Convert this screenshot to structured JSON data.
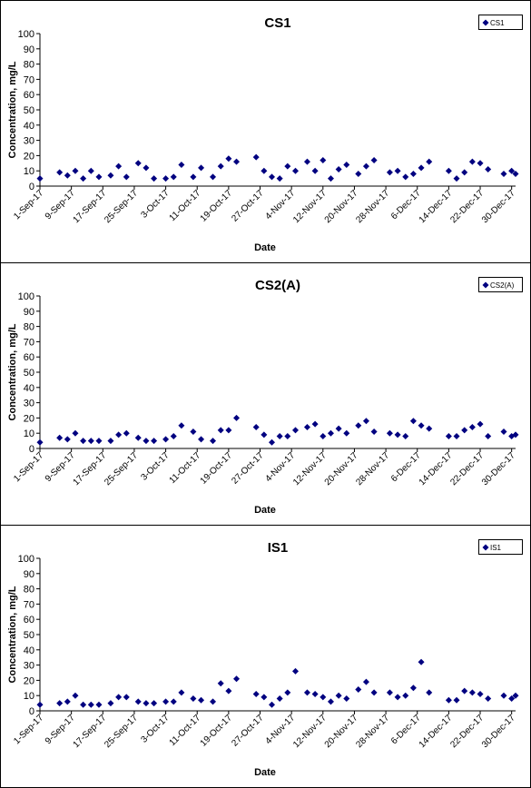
{
  "marker_color": "#000080",
  "x_ticks": [
    "1-Sep-17",
    "9-Sep-17",
    "17-Sep-17",
    "25-Sep-17",
    "3-Oct-17",
    "11-Oct-17",
    "19-Oct-17",
    "27-Oct-17",
    "4-Nov-17",
    "12-Nov-17",
    "20-Nov-17",
    "28-Nov-17",
    "6-Dec-17",
    "14-Dec-17",
    "22-Dec-17",
    "30-Dec-17"
  ],
  "y_ticks": [
    "0",
    "10",
    "20",
    "30",
    "40",
    "50",
    "60",
    "70",
    "80",
    "90",
    "100"
  ],
  "chart_data": [
    {
      "type": "scatter",
      "title": "CS1",
      "xlabel": "Date",
      "ylabel": "Concentration, mg/L",
      "ylim": [
        0,
        100
      ],
      "xlim": [
        "2017-09-01",
        "2017-12-30"
      ],
      "grid": false,
      "legend_position": "top-right",
      "series": [
        {
          "name": "CS1",
          "x": [
            "2017-09-01",
            "2017-09-06",
            "2017-09-08",
            "2017-09-10",
            "2017-09-12",
            "2017-09-14",
            "2017-09-16",
            "2017-09-19",
            "2017-09-21",
            "2017-09-23",
            "2017-09-26",
            "2017-09-28",
            "2017-09-30",
            "2017-10-03",
            "2017-10-05",
            "2017-10-07",
            "2017-10-10",
            "2017-10-12",
            "2017-10-15",
            "2017-10-17",
            "2017-10-19",
            "2017-10-21",
            "2017-10-26",
            "2017-10-28",
            "2017-10-30",
            "2017-11-01",
            "2017-11-03",
            "2017-11-05",
            "2017-11-08",
            "2017-11-10",
            "2017-11-12",
            "2017-11-14",
            "2017-11-16",
            "2017-11-18",
            "2017-11-21",
            "2017-11-23",
            "2017-11-25",
            "2017-11-29",
            "2017-12-01",
            "2017-12-03",
            "2017-12-05",
            "2017-12-07",
            "2017-12-09",
            "2017-12-14",
            "2017-12-16",
            "2017-12-18",
            "2017-12-20",
            "2017-12-22",
            "2017-12-24",
            "2017-12-28",
            "2017-12-30",
            "2017-12-31"
          ],
          "y": [
            5,
            9,
            7,
            10,
            5,
            10,
            6,
            7,
            13,
            6,
            15,
            12,
            5,
            5,
            6,
            14,
            6,
            12,
            6,
            13,
            18,
            16,
            19,
            10,
            6,
            5,
            13,
            10,
            16,
            10,
            17,
            5,
            11,
            14,
            8,
            13,
            17,
            9,
            10,
            6,
            8,
            12,
            16,
            10,
            5,
            9,
            16,
            15,
            11,
            8,
            10,
            8
          ]
        }
      ]
    },
    {
      "type": "scatter",
      "title": "CS2(A)",
      "xlabel": "Date",
      "ylabel": "Concentration, mg/L",
      "ylim": [
        0,
        100
      ],
      "xlim": [
        "2017-09-01",
        "2017-12-30"
      ],
      "grid": false,
      "legend_position": "top-right",
      "series": [
        {
          "name": "CS2(A)",
          "x": [
            "2017-09-01",
            "2017-09-06",
            "2017-09-08",
            "2017-09-10",
            "2017-09-12",
            "2017-09-14",
            "2017-09-16",
            "2017-09-19",
            "2017-09-21",
            "2017-09-23",
            "2017-09-26",
            "2017-09-28",
            "2017-09-30",
            "2017-10-03",
            "2017-10-05",
            "2017-10-07",
            "2017-10-10",
            "2017-10-12",
            "2017-10-15",
            "2017-10-17",
            "2017-10-19",
            "2017-10-21",
            "2017-10-26",
            "2017-10-28",
            "2017-10-30",
            "2017-11-01",
            "2017-11-03",
            "2017-11-05",
            "2017-11-08",
            "2017-11-10",
            "2017-11-12",
            "2017-11-14",
            "2017-11-16",
            "2017-11-18",
            "2017-11-21",
            "2017-11-23",
            "2017-11-25",
            "2017-11-29",
            "2017-12-01",
            "2017-12-03",
            "2017-12-05",
            "2017-12-07",
            "2017-12-09",
            "2017-12-14",
            "2017-12-16",
            "2017-12-18",
            "2017-12-20",
            "2017-12-22",
            "2017-12-24",
            "2017-12-28",
            "2017-12-30",
            "2017-12-31"
          ],
          "y": [
            4,
            7,
            6,
            10,
            5,
            5,
            5,
            5,
            9,
            10,
            7,
            5,
            5,
            6,
            8,
            15,
            11,
            6,
            5,
            12,
            12,
            20,
            14,
            9,
            4,
            8,
            8,
            12,
            14,
            16,
            8,
            10,
            13,
            10,
            15,
            18,
            11,
            10,
            9,
            8,
            18,
            15,
            13,
            8,
            8,
            12,
            14,
            16,
            8,
            11,
            8,
            9
          ]
        }
      ]
    },
    {
      "type": "scatter",
      "title": "IS1",
      "xlabel": "Date",
      "ylabel": "Concentration, mg/L",
      "ylim": [
        0,
        100
      ],
      "xlim": [
        "2017-09-01",
        "2017-12-30"
      ],
      "grid": false,
      "legend_position": "top-right",
      "series": [
        {
          "name": "IS1",
          "x": [
            "2017-09-01",
            "2017-09-06",
            "2017-09-08",
            "2017-09-10",
            "2017-09-12",
            "2017-09-14",
            "2017-09-16",
            "2017-09-19",
            "2017-09-21",
            "2017-09-23",
            "2017-09-26",
            "2017-09-28",
            "2017-09-30",
            "2017-10-03",
            "2017-10-05",
            "2017-10-07",
            "2017-10-10",
            "2017-10-12",
            "2017-10-15",
            "2017-10-17",
            "2017-10-19",
            "2017-10-21",
            "2017-10-26",
            "2017-10-28",
            "2017-10-30",
            "2017-11-01",
            "2017-11-03",
            "2017-11-05",
            "2017-11-08",
            "2017-11-10",
            "2017-11-12",
            "2017-11-14",
            "2017-11-16",
            "2017-11-18",
            "2017-11-21",
            "2017-11-23",
            "2017-11-25",
            "2017-11-29",
            "2017-12-01",
            "2017-12-03",
            "2017-12-05",
            "2017-12-07",
            "2017-12-09",
            "2017-12-14",
            "2017-12-16",
            "2017-12-18",
            "2017-12-20",
            "2017-12-22",
            "2017-12-24",
            "2017-12-28",
            "2017-12-30",
            "2017-12-31"
          ],
          "y": [
            4,
            5,
            6,
            10,
            4,
            4,
            4,
            5,
            9,
            9,
            6,
            5,
            5,
            6,
            6,
            12,
            8,
            7,
            6,
            18,
            13,
            21,
            11,
            9,
            4,
            8,
            12,
            26,
            12,
            11,
            9,
            6,
            10,
            8,
            14,
            19,
            12,
            12,
            9,
            10,
            15,
            32,
            12,
            7,
            7,
            13,
            12,
            11,
            8,
            10,
            8,
            10
          ]
        }
      ]
    }
  ]
}
